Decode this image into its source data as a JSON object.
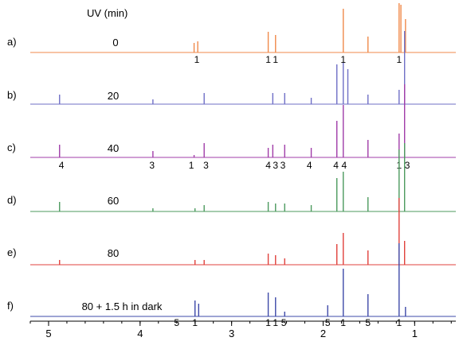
{
  "header": "UV (min)",
  "chart_data": {
    "type": "line",
    "title": "",
    "xlabel": "",
    "ylabel": "",
    "xlim": [
      5.2,
      0.55
    ],
    "x_reversed": true,
    "x_tick_labels": [
      "5",
      "4",
      "3",
      "2",
      "1"
    ],
    "x_ticks": [
      5,
      4,
      3,
      2,
      1
    ],
    "grid": false,
    "legend": "none",
    "series": [
      {
        "panel": "a)",
        "name": "0",
        "color": "#F08A4B",
        "peaks": [
          {
            "x": 3.37,
            "h": 14
          },
          {
            "x": 3.41,
            "h": 12
          },
          {
            "x": 2.6,
            "h": 26
          },
          {
            "x": 2.52,
            "h": 22
          },
          {
            "x": 1.78,
            "h": 55
          },
          {
            "x": 1.51,
            "h": 20
          },
          {
            "x": 1.17,
            "h": 62
          },
          {
            "x": 1.15,
            "h": 60
          },
          {
            "x": 1.1,
            "h": 42
          }
        ],
        "assignments": [
          {
            "x": 3.38,
            "label": "1"
          },
          {
            "x": 2.6,
            "label": "1"
          },
          {
            "x": 2.52,
            "label": "1"
          },
          {
            "x": 1.78,
            "label": "1"
          },
          {
            "x": 1.17,
            "label": "1"
          }
        ]
      },
      {
        "panel": "b)",
        "name": "20",
        "color": "#6F6FC6",
        "peaks": [
          {
            "x": 4.88,
            "h": 12
          },
          {
            "x": 3.86,
            "h": 6
          },
          {
            "x": 3.3,
            "h": 14
          },
          {
            "x": 2.55,
            "h": 14
          },
          {
            "x": 2.42,
            "h": 14
          },
          {
            "x": 2.13,
            "h": 8
          },
          {
            "x": 1.85,
            "h": 50
          },
          {
            "x": 1.78,
            "h": 52
          },
          {
            "x": 1.73,
            "h": 44
          },
          {
            "x": 1.51,
            "h": 12
          },
          {
            "x": 1.17,
            "h": 18
          },
          {
            "x": 1.11,
            "h": 92
          }
        ],
        "assignments": []
      },
      {
        "panel": "c)",
        "name": "40",
        "color": "#A03CA8",
        "peaks": [
          {
            "x": 4.88,
            "h": 16
          },
          {
            "x": 3.86,
            "h": 8
          },
          {
            "x": 3.41,
            "h": 3
          },
          {
            "x": 3.3,
            "h": 18
          },
          {
            "x": 2.6,
            "h": 12
          },
          {
            "x": 2.55,
            "h": 16
          },
          {
            "x": 2.42,
            "h": 16
          },
          {
            "x": 2.13,
            "h": 12
          },
          {
            "x": 1.85,
            "h": 46
          },
          {
            "x": 1.78,
            "h": 66
          },
          {
            "x": 1.51,
            "h": 22
          },
          {
            "x": 1.17,
            "h": 30
          },
          {
            "x": 1.11,
            "h": 92
          }
        ],
        "assignments": [
          {
            "x": 4.86,
            "label": "4"
          },
          {
            "x": 3.87,
            "label": "3"
          },
          {
            "x": 3.44,
            "label": "1"
          },
          {
            "x": 3.28,
            "label": "3"
          },
          {
            "x": 2.6,
            "label": "4"
          },
          {
            "x": 2.52,
            "label": "3"
          },
          {
            "x": 2.44,
            "label": "3"
          },
          {
            "x": 2.15,
            "label": "4"
          },
          {
            "x": 1.86,
            "label": "4"
          },
          {
            "x": 1.77,
            "label": "4"
          },
          {
            "x": 1.17,
            "label": "1"
          },
          {
            "x": 1.08,
            "label": "3"
          }
        ]
      },
      {
        "panel": "d)",
        "name": "60",
        "color": "#4C9A5E",
        "peaks": [
          {
            "x": 4.88,
            "h": 12
          },
          {
            "x": 3.86,
            "h": 4
          },
          {
            "x": 3.4,
            "h": 4
          },
          {
            "x": 3.3,
            "h": 8
          },
          {
            "x": 2.6,
            "h": 12
          },
          {
            "x": 2.52,
            "h": 10
          },
          {
            "x": 2.42,
            "h": 10
          },
          {
            "x": 2.13,
            "h": 8
          },
          {
            "x": 1.85,
            "h": 42
          },
          {
            "x": 1.78,
            "h": 50
          },
          {
            "x": 1.51,
            "h": 18
          },
          {
            "x": 1.17,
            "h": 78
          },
          {
            "x": 1.11,
            "h": 86
          }
        ],
        "assignments": []
      },
      {
        "panel": "e)",
        "name": "80",
        "color": "#E0413C",
        "peaks": [
          {
            "x": 4.88,
            "h": 6
          },
          {
            "x": 3.4,
            "h": 6
          },
          {
            "x": 3.3,
            "h": 6
          },
          {
            "x": 2.6,
            "h": 14
          },
          {
            "x": 2.52,
            "h": 12
          },
          {
            "x": 2.42,
            "h": 8
          },
          {
            "x": 1.85,
            "h": 26
          },
          {
            "x": 1.78,
            "h": 40
          },
          {
            "x": 1.51,
            "h": 18
          },
          {
            "x": 1.17,
            "h": 84
          },
          {
            "x": 1.11,
            "h": 30
          }
        ],
        "assignments": []
      },
      {
        "panel": "f)",
        "name": "80 + 1.5 h in dark",
        "color": "#3E49A8",
        "peaks": [
          {
            "x": 3.4,
            "h": 20
          },
          {
            "x": 3.36,
            "h": 16
          },
          {
            "x": 2.6,
            "h": 30
          },
          {
            "x": 2.52,
            "h": 24
          },
          {
            "x": 2.42,
            "h": 6
          },
          {
            "x": 1.95,
            "h": 14
          },
          {
            "x": 1.78,
            "h": 60
          },
          {
            "x": 1.51,
            "h": 28
          },
          {
            "x": 1.17,
            "h": 92
          },
          {
            "x": 1.1,
            "h": 12
          }
        ],
        "assignments": [
          {
            "x": 3.6,
            "label": "5"
          },
          {
            "x": 3.4,
            "label": "1"
          },
          {
            "x": 2.6,
            "label": "1"
          },
          {
            "x": 2.52,
            "label": "1"
          },
          {
            "x": 2.43,
            "label": "5"
          },
          {
            "x": 1.95,
            "label": "5"
          },
          {
            "x": 1.78,
            "label": "1"
          },
          {
            "x": 1.51,
            "label": "5"
          },
          {
            "x": 1.17,
            "label": "1"
          }
        ]
      }
    ]
  }
}
